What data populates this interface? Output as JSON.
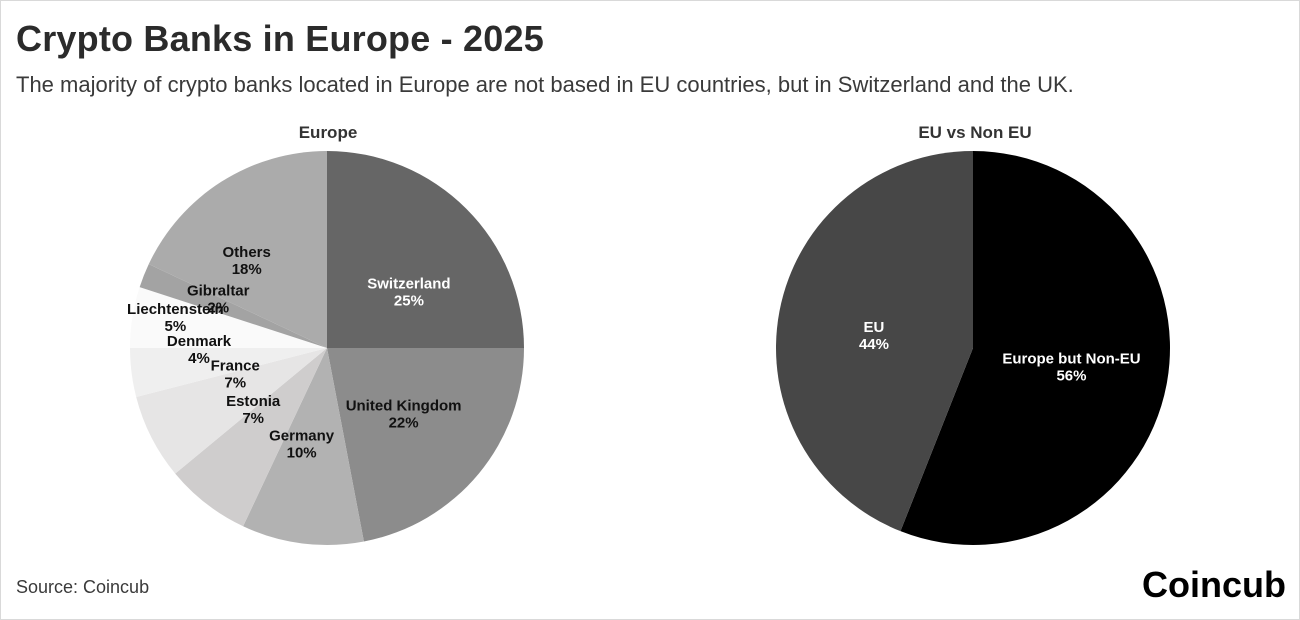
{
  "header": {
    "title": "Crypto Banks in Europe - 2025",
    "subtitle": "The majority of crypto banks located in Europe are not based in EU countries, but in Switzerland and the UK."
  },
  "footer": {
    "source": "Source: Coincub",
    "brand": "Coincub"
  },
  "chart_data": [
    {
      "type": "pie",
      "title": "Europe",
      "slices": [
        {
          "label": "Switzerland",
          "value": 25,
          "display": "25%",
          "color": "#666666"
        },
        {
          "label": "United Kingdom",
          "value": 22,
          "display": "22%",
          "color": "#8c8c8c"
        },
        {
          "label": "Germany",
          "value": 10,
          "display": "10%",
          "color": "#b2b2b2"
        },
        {
          "label": "Estonia",
          "value": 7,
          "display": "7%",
          "color": "#cfcdcd"
        },
        {
          "label": "France",
          "value": 7,
          "display": "7%",
          "color": "#e6e5e5"
        },
        {
          "label": "Denmark",
          "value": 4,
          "display": "4%",
          "color": "#efefef"
        },
        {
          "label": "Liechtenstein",
          "value": 5,
          "display": "5%",
          "color": "#fafafa"
        },
        {
          "label": "Gibraltar",
          "value": 2,
          "display": "2%",
          "color": "#a3a3a3"
        },
        {
          "label": "Others",
          "value": 18,
          "display": "18%",
          "color": "#ababab"
        }
      ]
    },
    {
      "type": "pie",
      "title": "EU vs Non EU",
      "slices": [
        {
          "label": "Europe but Non-EU",
          "value": 56,
          "display": "56%",
          "color": "#000000"
        },
        {
          "label": "EU",
          "value": 44,
          "display": "44%",
          "color": "#474747"
        }
      ]
    }
  ]
}
